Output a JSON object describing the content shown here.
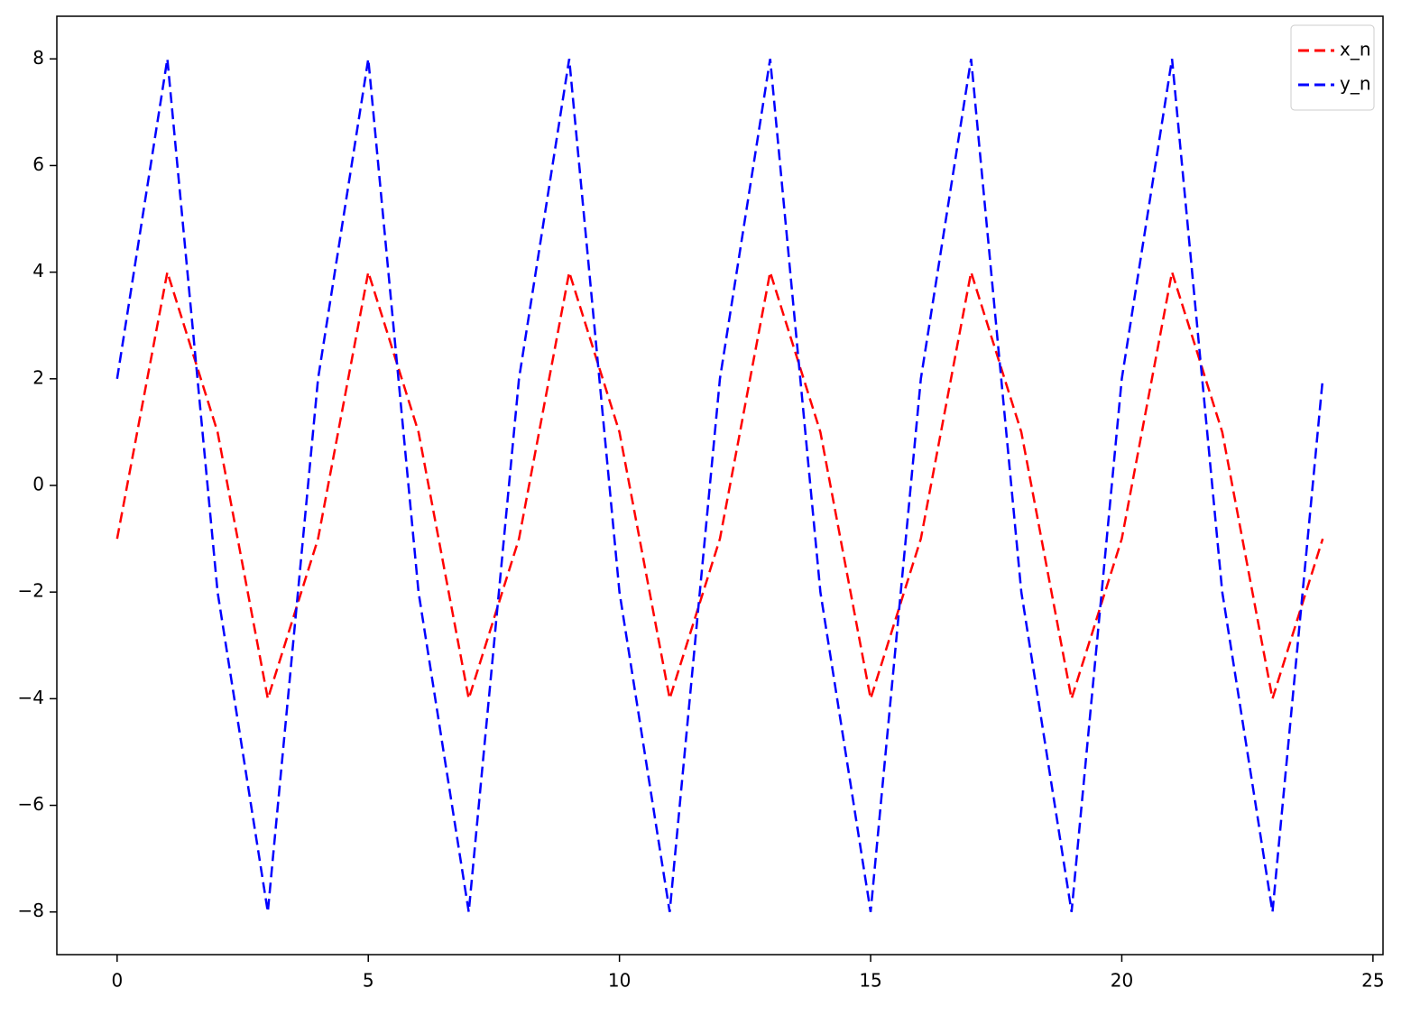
{
  "chart_data": {
    "type": "line",
    "x": [
      0,
      1,
      2,
      3,
      4,
      5,
      6,
      7,
      8,
      9,
      10,
      11,
      12,
      13,
      14,
      15,
      16,
      17,
      18,
      19,
      20,
      21,
      22,
      23,
      24
    ],
    "series": [
      {
        "name": "x_n",
        "color": "#ff0000",
        "values": [
          -1,
          4,
          1,
          -4,
          -1,
          4,
          1,
          -4,
          -1,
          4,
          1,
          -4,
          -1,
          4,
          1,
          -4,
          -1,
          4,
          1,
          -4,
          -1,
          4,
          1,
          -4,
          -1
        ]
      },
      {
        "name": "y_n",
        "color": "#0000ff",
        "values": [
          2,
          8,
          -2,
          -8,
          2,
          8,
          -2,
          -8,
          2,
          8,
          -2,
          -8,
          2,
          8,
          -2,
          -8,
          2,
          8,
          -2,
          -8,
          2,
          8,
          -2,
          -8,
          2
        ]
      }
    ],
    "xlim": [
      -1.2,
      25.2
    ],
    "xticks": [
      0,
      5,
      10,
      15,
      20,
      25
    ],
    "ylim": [
      -8.8,
      8.8
    ],
    "yticks": [
      {
        "value": -8,
        "label": "−8"
      },
      {
        "value": -6,
        "label": "−6"
      },
      {
        "value": -4,
        "label": "−4"
      },
      {
        "value": -2,
        "label": "−2"
      },
      0,
      2,
      4,
      6,
      8
    ],
    "grid": false,
    "line_style": "dashed",
    "legend": "upper right"
  }
}
